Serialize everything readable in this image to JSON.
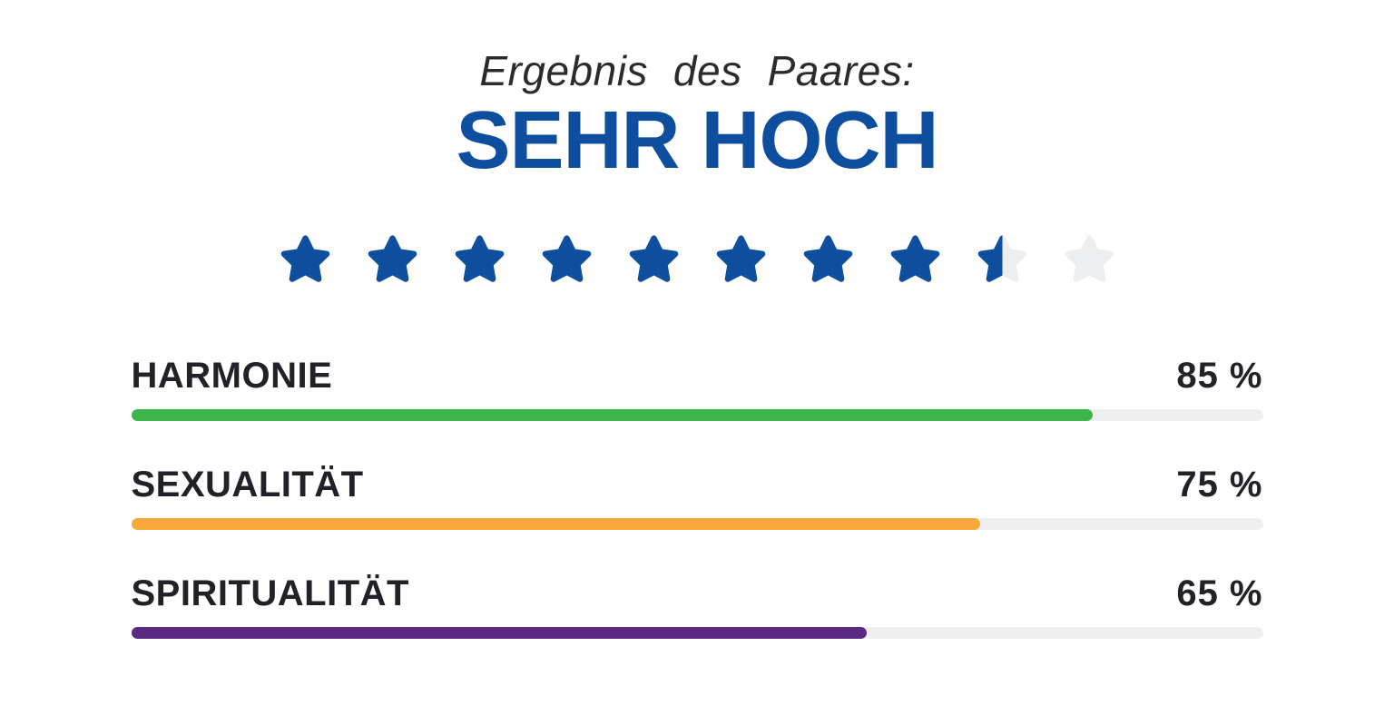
{
  "page": {
    "background": "#ffffff"
  },
  "header": {
    "subtitle": "Ergebnis des Paares:",
    "result_label": "SEHR HOCH",
    "result_color": "#0d4f9e",
    "subtitle_color": "#2b2b2e"
  },
  "rating": {
    "stars_total": 10,
    "stars_filled": 8.5,
    "star_color": "#0d4f9e",
    "star_empty_color": "#eceef0"
  },
  "chart_data": {
    "type": "bar",
    "orientation": "horizontal",
    "title": "Ergebnis des Paares: SEHR HOCH",
    "categories": [
      "HARMONIE",
      "SEXUALITÄT",
      "SPIRITUALITÄT"
    ],
    "values": [
      85,
      75,
      65
    ],
    "value_labels": [
      "85 %",
      "75 %",
      "65 %"
    ],
    "colors": [
      "#3cb54a",
      "#f9a83c",
      "#5b2b83"
    ],
    "track_color": "#efefef",
    "label_color": "#232127",
    "xlim": [
      0,
      100
    ],
    "grid": false,
    "legend": false,
    "star_rating": {
      "value": 8.5,
      "max": 10
    }
  }
}
